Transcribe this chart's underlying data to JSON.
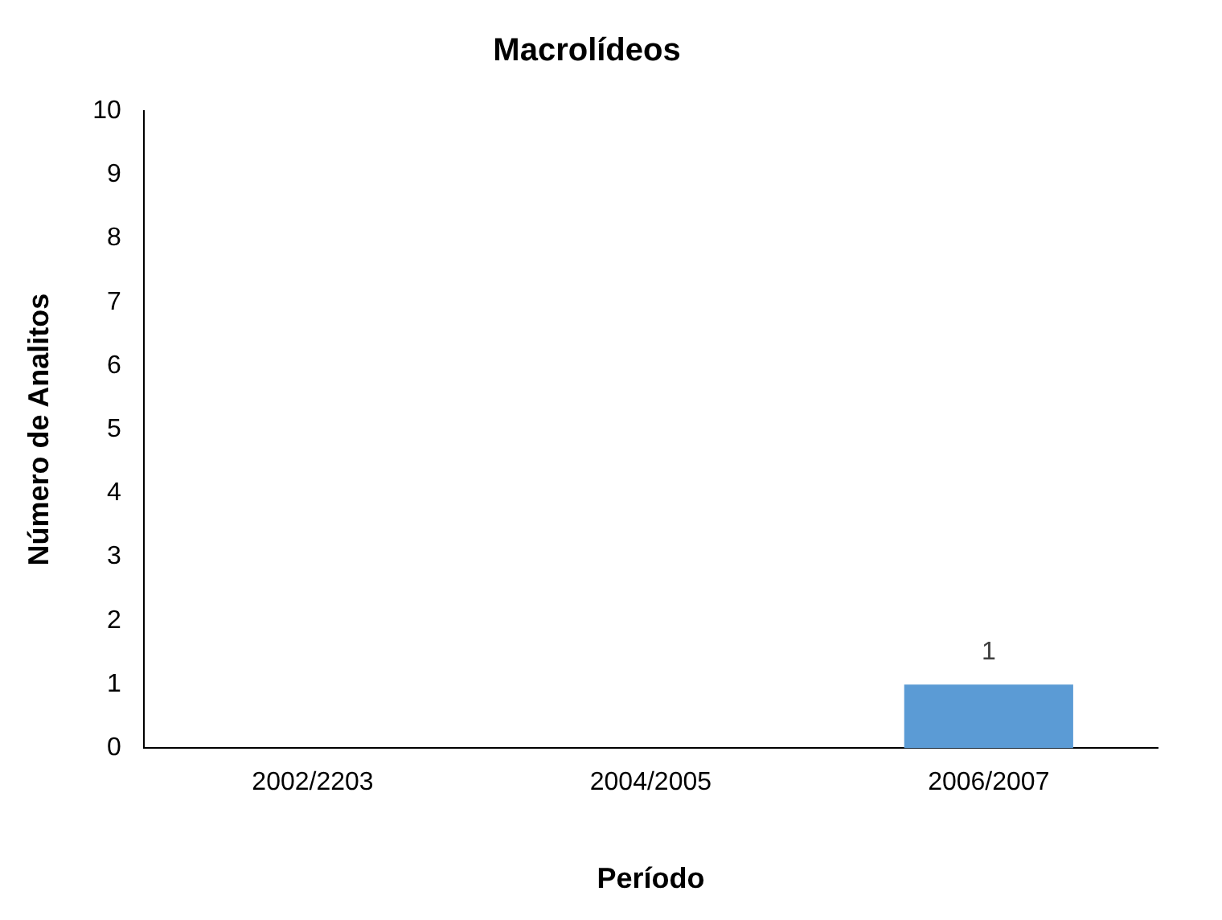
{
  "chart_data": {
    "type": "bar",
    "title": "Macrolídeos",
    "xlabel": "Período",
    "ylabel": "Número de Analitos",
    "categories": [
      "2002/2203",
      "2004/2005",
      "2006/2007"
    ],
    "values": [
      0,
      0,
      1
    ],
    "color": "#5b9bd5",
    "value_labels": [
      null,
      null,
      "1"
    ],
    "ylim": [
      0,
      10
    ],
    "yticks": [
      0,
      1,
      2,
      3,
      4,
      5,
      6,
      7,
      8,
      9,
      10
    ],
    "grid": false,
    "legend": false
  }
}
